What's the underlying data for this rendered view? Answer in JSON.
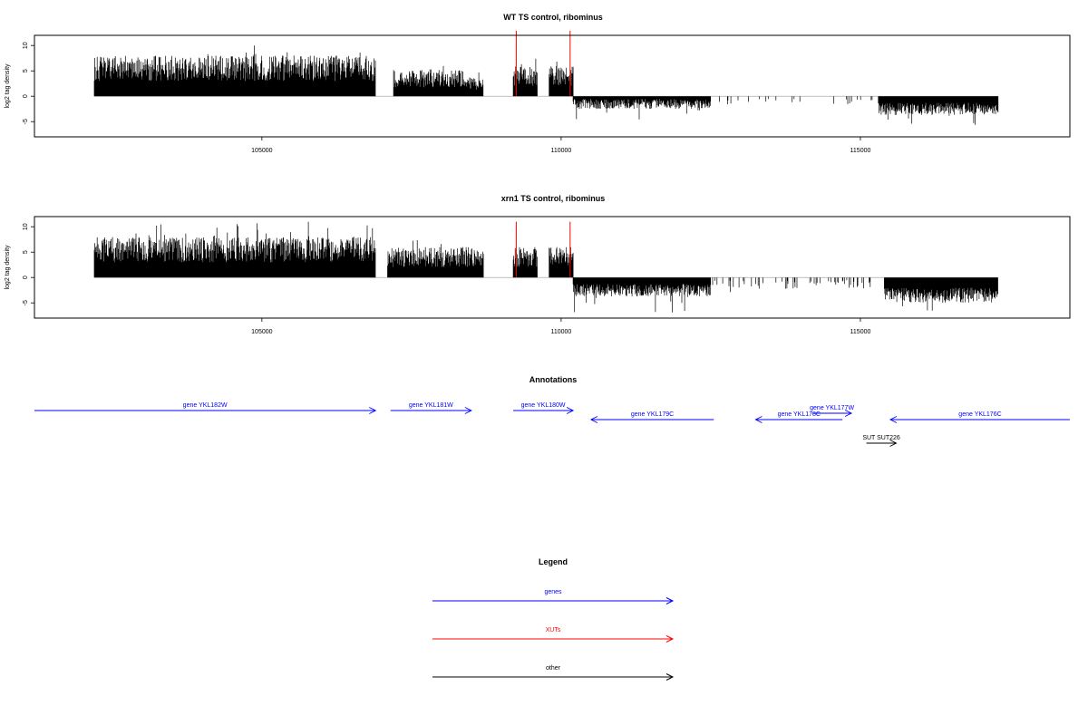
{
  "colors": {
    "gene": "#0000ff",
    "xut": "#ff0000",
    "other": "#000000",
    "bars": "#000000"
  },
  "chart_data": [
    {
      "type": "bar",
      "title": "WT TS control, ribominus",
      "ylabel": "log2 tag density",
      "xlim": [
        101200,
        118500
      ],
      "ylim": [
        -8,
        12
      ],
      "xticks": [
        "105000",
        "110000",
        "115000"
      ],
      "xtick_values": [
        105000,
        110000,
        115000
      ],
      "yticks": [
        "-5",
        "0",
        "5",
        "10"
      ],
      "ytick_values": [
        -5,
        0,
        5,
        10
      ],
      "segments": [
        {
          "from": 102200,
          "to": 106900,
          "mean": 5.5,
          "amp": 2.5,
          "max": 11
        },
        {
          "from": 107200,
          "to": 108400,
          "mean": 3.5,
          "amp": 1.8,
          "max": 7
        },
        {
          "from": 108400,
          "to": 108700,
          "mean": 2.5,
          "amp": 1.2,
          "max": 5
        },
        {
          "from": 109200,
          "to": 109600,
          "mean": 4.0,
          "amp": 2.0,
          "max": 8
        },
        {
          "from": 109800,
          "to": 110200,
          "mean": 4.0,
          "amp": 2.0,
          "max": 7
        },
        {
          "from": 110200,
          "to": 112500,
          "mean": -1.5,
          "amp": 1.0,
          "max": 5
        },
        {
          "from": 112500,
          "to": 115200,
          "mean": -0.8,
          "amp": 0.8,
          "max": 3,
          "density": 0.08
        },
        {
          "from": 115300,
          "to": 117300,
          "mean": -2.5,
          "amp": 1.2,
          "max": 6
        }
      ],
      "highlights": [
        {
          "x": 109250,
          "ymax": 14
        },
        {
          "x": 110150,
          "ymax": 14
        }
      ]
    },
    {
      "type": "bar",
      "title": "xrn1 TS control, ribominus",
      "ylabel": "log2 tag density",
      "xlim": [
        101200,
        118500
      ],
      "ylim": [
        -8,
        12
      ],
      "xticks": [
        "105000",
        "110000",
        "115000"
      ],
      "xtick_values": [
        105000,
        110000,
        115000
      ],
      "yticks": [
        "-5",
        "0",
        "5",
        "10"
      ],
      "ytick_values": [
        -5,
        0,
        5,
        10
      ],
      "segments": [
        {
          "from": 102200,
          "to": 106900,
          "mean": 5.5,
          "amp": 2.5,
          "max": 11
        },
        {
          "from": 107100,
          "to": 108700,
          "mean": 4.0,
          "amp": 2.0,
          "max": 8
        },
        {
          "from": 109200,
          "to": 109600,
          "mean": 4.0,
          "amp": 2.0,
          "max": 8
        },
        {
          "from": 109800,
          "to": 110200,
          "mean": 4.0,
          "amp": 2.0,
          "max": 7
        },
        {
          "from": 110200,
          "to": 112500,
          "mean": -2.5,
          "amp": 1.2,
          "max": 7
        },
        {
          "from": 112500,
          "to": 115200,
          "mean": -1.0,
          "amp": 1.2,
          "max": 4,
          "density": 0.15
        },
        {
          "from": 115400,
          "to": 117300,
          "mean": -3.5,
          "amp": 1.5,
          "max": 7
        }
      ],
      "highlights": [
        {
          "x": 109250,
          "ymax": 11
        },
        {
          "x": 110150,
          "ymax": 11
        }
      ]
    }
  ],
  "annotations": {
    "title": "Annotations",
    "features": [
      {
        "label": "gene YKL182W",
        "start": 101200,
        "end": 106900,
        "strand": "+",
        "row": 0,
        "kind": "gene"
      },
      {
        "label": "gene YKL181W",
        "start": 107150,
        "end": 108500,
        "strand": "+",
        "row": 0,
        "kind": "gene"
      },
      {
        "label": "gene YKL180W",
        "start": 109200,
        "end": 110200,
        "strand": "+",
        "row": 0,
        "kind": "gene"
      },
      {
        "label": "gene YKL179C",
        "start": 110500,
        "end": 112550,
        "strand": "-",
        "row": 1,
        "kind": "gene"
      },
      {
        "label": "gene YKL178C",
        "start": 113250,
        "end": 114700,
        "strand": "-",
        "row": 1,
        "kind": "gene"
      },
      {
        "label": "gene YKL177W",
        "start": 114200,
        "end": 114850,
        "strand": "+",
        "row": 0.3,
        "kind": "gene"
      },
      {
        "label": "gene YKL176C",
        "start": 115500,
        "end": 118500,
        "strand": "-",
        "row": 1,
        "kind": "gene"
      },
      {
        "label": "SUT SUT226",
        "start": 115100,
        "end": 115600,
        "strand": "+",
        "row": 3.6,
        "kind": "other"
      }
    ]
  },
  "legend": {
    "title": "Legend",
    "items": [
      {
        "label": "genes",
        "kind": "gene"
      },
      {
        "label": "XUTs",
        "kind": "xut"
      },
      {
        "label": "other",
        "kind": "other"
      }
    ]
  }
}
